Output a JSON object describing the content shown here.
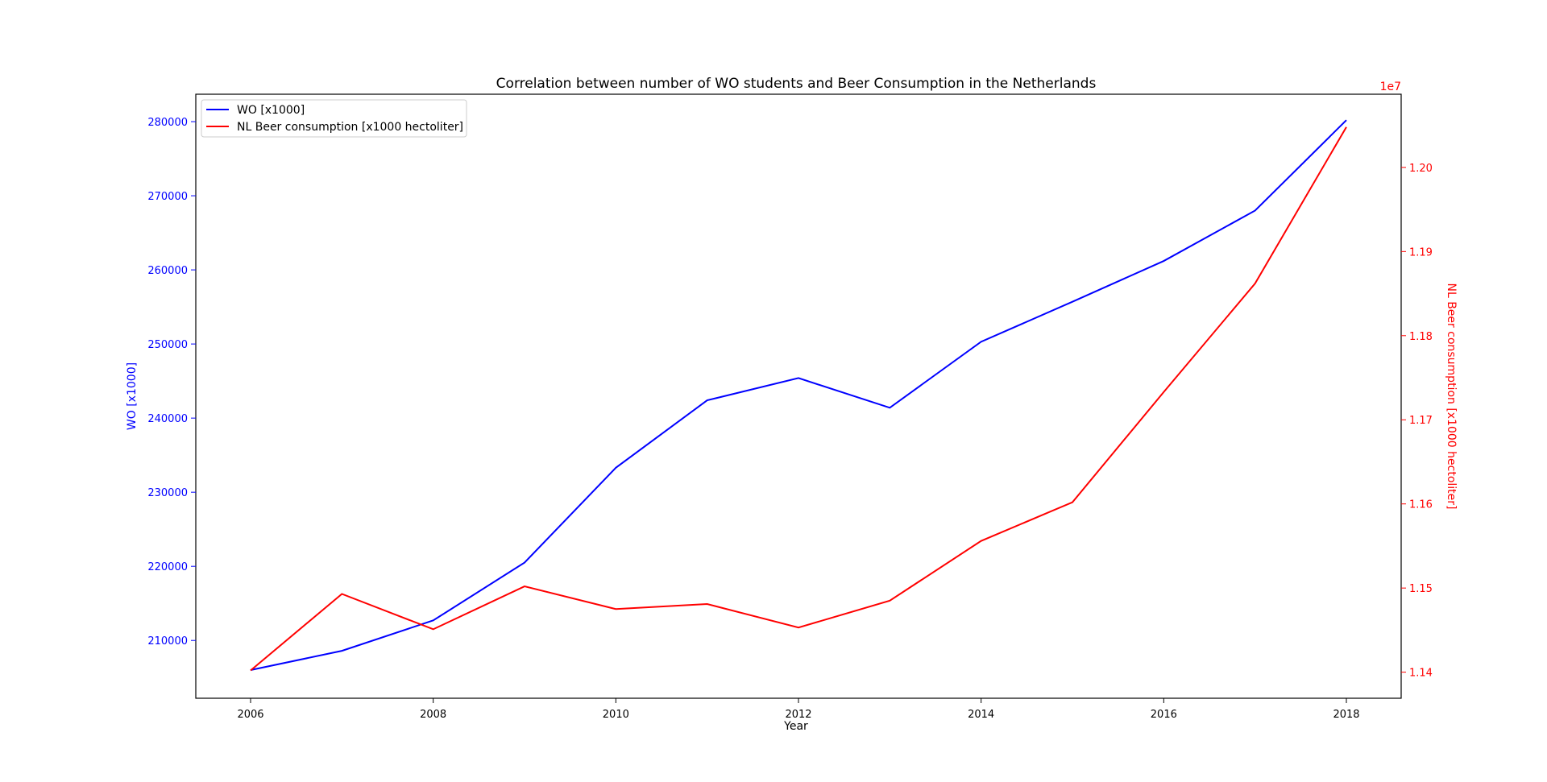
{
  "window": {
    "background": "#ffffff"
  },
  "chart_data": {
    "type": "line",
    "title": "Correlation between number of WO students and Beer Consumption in the Netherlands",
    "xlabel": "Year",
    "x": [
      2006,
      2007,
      2008,
      2009,
      2010,
      2011,
      2012,
      2013,
      2014,
      2015,
      2016,
      2017,
      2018
    ],
    "xlim": [
      2005.4,
      2018.6
    ],
    "x_ticks": [
      2006,
      2008,
      2010,
      2012,
      2014,
      2016,
      2018
    ],
    "grid": false,
    "legend_position": "upper-left",
    "left_axis": {
      "label": "WO [x1000]",
      "color": "#0000ff",
      "ylim": [
        202200,
        283700
      ],
      "ticks": [
        210000,
        220000,
        230000,
        240000,
        250000,
        260000,
        270000,
        280000
      ],
      "tick_labels": [
        "210000",
        "220000",
        "230000",
        "240000",
        "250000",
        "260000",
        "270000",
        "280000"
      ]
    },
    "right_axis": {
      "label": "NL Beer consumption [x1000 hectoliter]",
      "color": "#ff0000",
      "offset_text": "1e7",
      "ylim": [
        11369000,
        12087000
      ],
      "ticks": [
        11400000,
        11500000,
        11600000,
        11700000,
        11800000,
        11900000,
        12000000
      ],
      "tick_labels": [
        "1.14",
        "1.15",
        "1.16",
        "1.17",
        "1.18",
        "1.19",
        "1.20"
      ]
    },
    "series": [
      {
        "name": "WO [x1000]",
        "axis": "left",
        "color": "#0000ff",
        "values": [
          206000,
          208600,
          212700,
          220500,
          233300,
          242400,
          245400,
          241400,
          250300,
          255700,
          261200,
          268000,
          280200
        ]
      },
      {
        "name": "NL Beer consumption [x1000 hectoliter]",
        "axis": "right",
        "color": "#ff0000",
        "values": [
          11402000,
          11493000,
          11451000,
          11502000,
          11475000,
          11481000,
          11453000,
          11485000,
          11556000,
          11602000,
          11733000,
          11862000,
          12048000
        ]
      }
    ]
  }
}
